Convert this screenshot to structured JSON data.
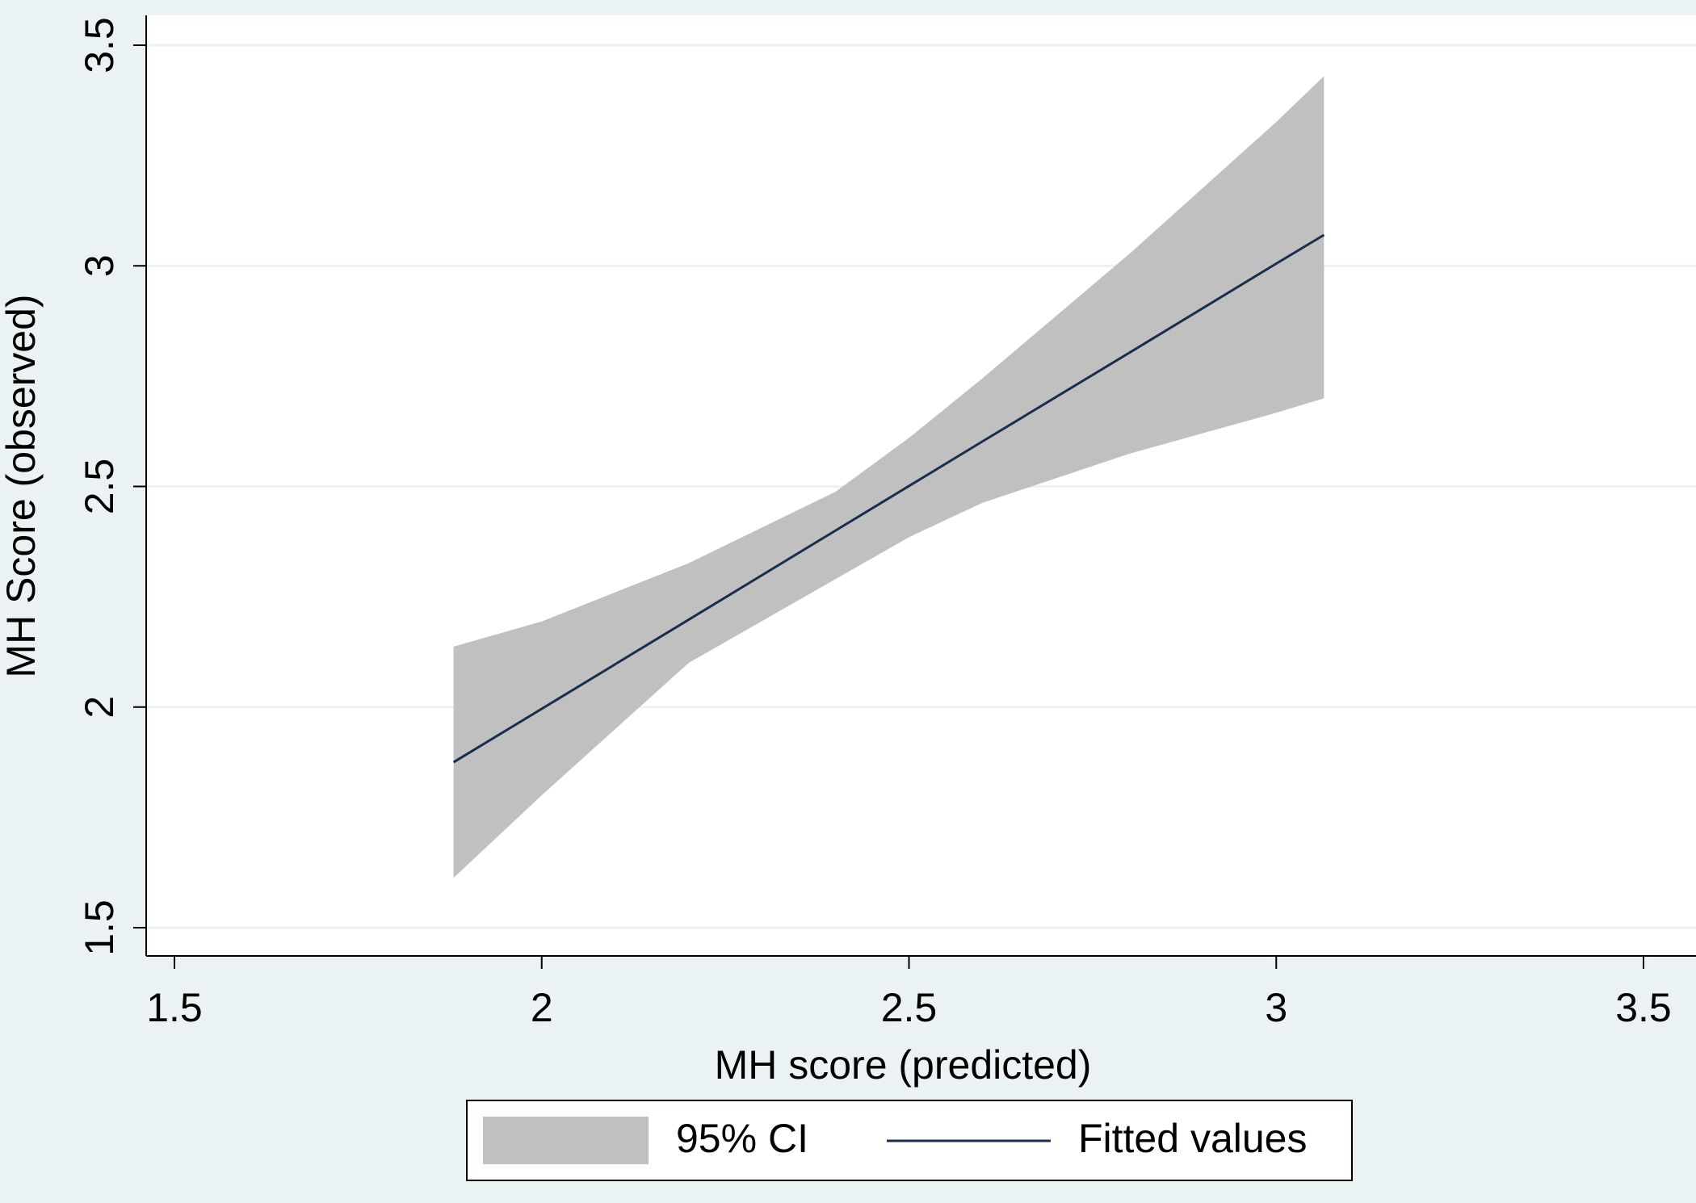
{
  "chart_data": {
    "type": "line",
    "x_label": "MH score (predicted)",
    "y_label": "MH Score (observed)",
    "x": [
      1.88,
      2.0,
      2.2,
      2.4,
      2.5,
      2.6,
      2.8,
      3.0,
      3.065
    ],
    "series": [
      {
        "name": "95% CI",
        "color": "#c0c0c0",
        "upper": [
          2.137,
          2.194,
          2.326,
          2.488,
          2.61,
          2.745,
          3.027,
          3.326,
          3.43
        ],
        "lower": [
          1.613,
          1.8,
          2.1,
          2.29,
          2.385,
          2.463,
          2.574,
          2.667,
          2.7
        ]
      },
      {
        "name": "Fitted values",
        "color": "#1a2e4a",
        "values": [
          1.875,
          1.996,
          2.198,
          2.4,
          2.501,
          2.602,
          2.803,
          3.005,
          3.07
        ]
      }
    ],
    "xlim": [
      1.5,
      3.5
    ],
    "xticks": [
      1.5,
      2,
      2.5,
      3,
      3.5
    ],
    "ylim": [
      1.5,
      3.5
    ],
    "yticks": [
      1.5,
      2,
      2.5,
      3,
      3.5
    ],
    "grid": true,
    "legend": "bottom"
  }
}
